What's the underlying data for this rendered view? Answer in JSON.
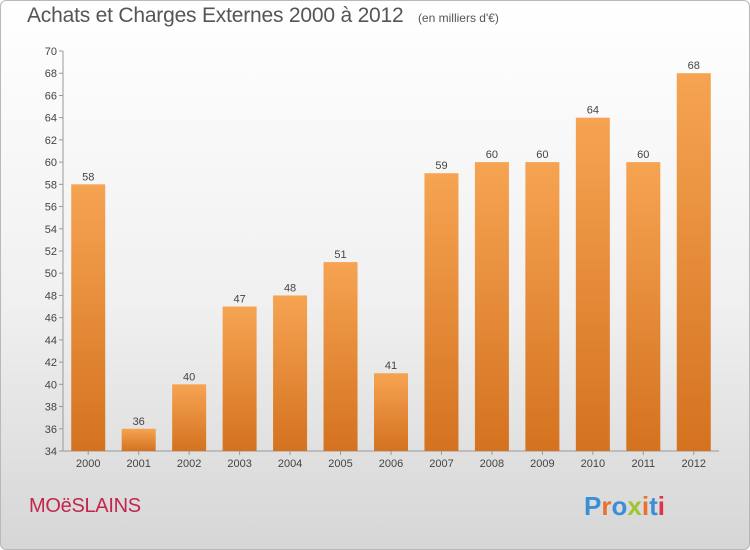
{
  "page": {
    "title": "Achats et Charges Externes 2000 à 2012",
    "unit": "(en milliers d'€)",
    "commune": "MOëSLAINS",
    "logo": "Proxiti",
    "logo_colors": [
      "#3a8fd8",
      "#e8722a",
      "#3a8fd8",
      "#9fc531",
      "#e8722a",
      "#3a8fd8",
      "#e0314e"
    ]
  },
  "chart_data": {
    "type": "bar",
    "title": "Achats et Charges Externes 2000 à 2012",
    "subtitle": "(en milliers d'€)",
    "xlabel": "",
    "ylabel": "",
    "categories": [
      "2000",
      "2001",
      "2002",
      "2003",
      "2004",
      "2005",
      "2006",
      "2007",
      "2008",
      "2009",
      "2010",
      "2011",
      "2012"
    ],
    "values": [
      58,
      36,
      40,
      47,
      48,
      51,
      41,
      59,
      60,
      60,
      64,
      60,
      68
    ],
    "ylim": [
      34,
      70
    ],
    "ytick_step": 2,
    "grid": false,
    "data_labels": true,
    "colors": {
      "bar_top": "#f6a452",
      "bar_bottom": "#d4721f",
      "axis": "#999999",
      "text": "#444444"
    }
  }
}
